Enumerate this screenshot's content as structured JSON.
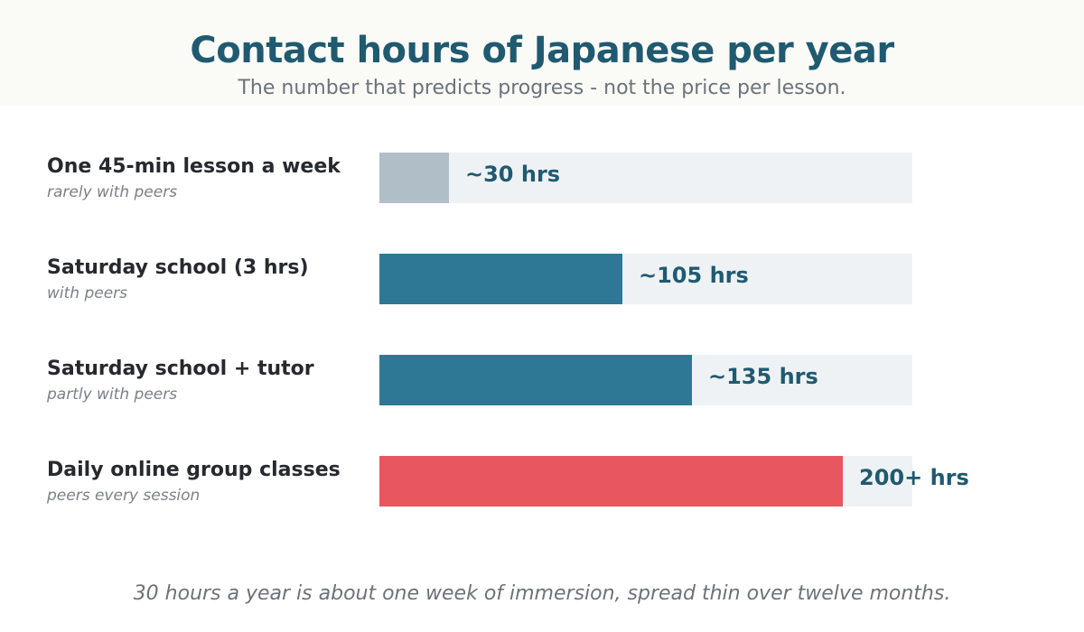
{
  "header": {
    "title": "Contact hours of Japanese per year",
    "subtitle": "The number that predicts progress - not the price per lesson."
  },
  "chart_data": {
    "type": "bar",
    "orientation": "horizontal",
    "title": "Contact hours of Japanese per year",
    "subtitle": "The number that predicts progress - not the price per lesson.",
    "xlim": [
      0,
      230
    ],
    "grid": false,
    "legend": "none",
    "categories": [
      "One 45-min lesson a week",
      "Saturday school (3 hrs)",
      "Saturday school + tutor",
      "Daily online group classes"
    ],
    "sublabels": [
      "rarely with peers",
      "with peers",
      "partly with peers",
      "peers every session"
    ],
    "values": [
      30,
      105,
      135,
      200
    ],
    "value_labels": [
      "~30 hrs",
      "~105 hrs",
      "~135 hrs",
      "200+ hrs"
    ],
    "colors": [
      "#b0bec7",
      "#2e7895",
      "#2e7895",
      "#e85660"
    ],
    "track_color": "#eef2f5"
  },
  "footnote": "30 hours a year is about one week of immersion, spread thin over twelve months."
}
